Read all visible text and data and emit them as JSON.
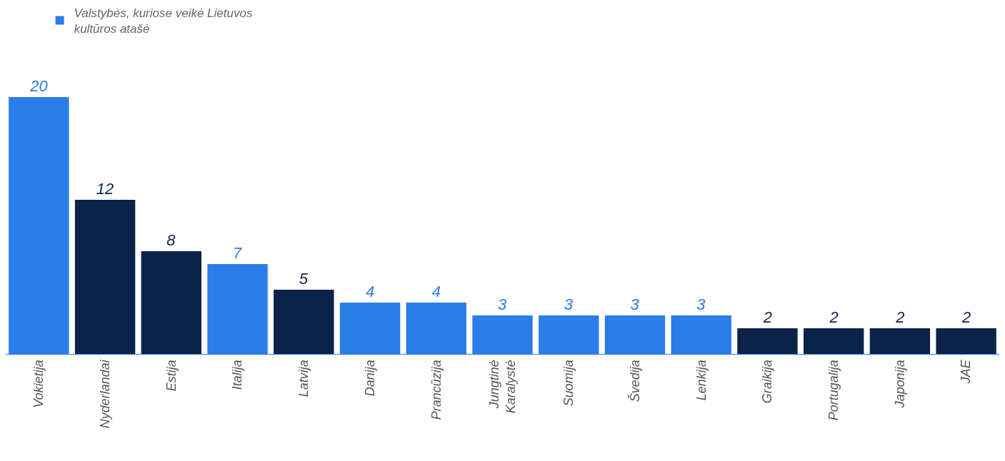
{
  "chart_data": {
    "type": "bar",
    "categories": [
      "Vokietija",
      "Nyderlandai",
      "Estija",
      "Italija",
      "Latvija",
      "Danija",
      "Prancūzija",
      "Jungtinė Karalystė",
      "Suomija",
      "Švedija",
      "Lenkija",
      "Graikija",
      "Portugalija",
      "Japonija",
      "JAE"
    ],
    "series": [
      {
        "name": "Valstybės, kuriose veikė Lietuvos kultūros atašė",
        "colors": [
          "#2b7de9",
          "#0b2349",
          "#0b2349",
          "#2b7de9",
          "#0b2349",
          "#2b7de9",
          "#2b7de9",
          "#2b7de9",
          "#2b7de9",
          "#2b7de9",
          "#2b7de9",
          "#0b2349",
          "#0b2349",
          "#0b2349",
          "#0b2349"
        ],
        "values": [
          20,
          12,
          8,
          7,
          5,
          4,
          4,
          3,
          3,
          3,
          3,
          2,
          2,
          2,
          2
        ]
      }
    ],
    "data_labels": true,
    "legend": "top left"
  }
}
